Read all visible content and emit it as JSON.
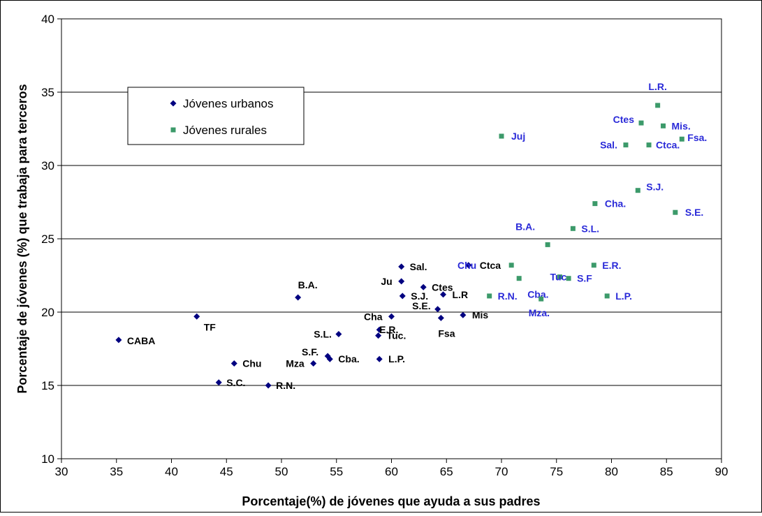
{
  "chart_data": {
    "type": "scatter",
    "title": "",
    "xlabel": "Porcentaje(%) de jóvenes que ayuda a sus padres",
    "ylabel": "Porcentaje de jóvenes (%) que trabaja para terceros",
    "xlim": [
      30,
      90
    ],
    "ylim": [
      10,
      40
    ],
    "x_ticks": [
      "30",
      "35",
      "40",
      "45",
      "50",
      "55",
      "60",
      "65",
      "70",
      "75",
      "80",
      "85",
      "90"
    ],
    "y_ticks": [
      "10",
      "15",
      "20",
      "25",
      "30",
      "35",
      "40"
    ],
    "grid": "horizontal",
    "legend_position": "top-left",
    "series": [
      {
        "name": "Jóvenes urbanos",
        "marker": "diamond",
        "color": "#000080",
        "label_color": "#000000",
        "points": [
          {
            "label": "CABA",
            "x": 35.2,
            "y": 18.1
          },
          {
            "label": "TF",
            "x": 42.3,
            "y": 19.7
          },
          {
            "label": "Chu",
            "x": 45.7,
            "y": 16.5
          },
          {
            "label": "S.C.",
            "x": 44.3,
            "y": 15.2
          },
          {
            "label": "R.N.",
            "x": 48.8,
            "y": 15.0
          },
          {
            "label": "B.A.",
            "x": 51.5,
            "y": 21.0
          },
          {
            "label": "Mza",
            "x": 52.9,
            "y": 16.5
          },
          {
            "label": "S.F.",
            "x": 54.2,
            "y": 17.0
          },
          {
            "label": "Cba.",
            "x": 54.4,
            "y": 16.8
          },
          {
            "label": "S.L.",
            "x": 55.2,
            "y": 18.5
          },
          {
            "label": "Tuc.",
            "x": 58.8,
            "y": 18.4
          },
          {
            "label": "E.R.",
            "x": 58.9,
            "y": 18.8
          },
          {
            "label": "L.P.",
            "x": 58.9,
            "y": 16.8
          },
          {
            "label": "Cha",
            "x": 60.0,
            "y": 19.7
          },
          {
            "label": "Ju",
            "x": 60.9,
            "y": 22.1
          },
          {
            "label": "Sal.",
            "x": 60.9,
            "y": 23.1
          },
          {
            "label": "S.J.",
            "x": 61.0,
            "y": 21.1
          },
          {
            "label": "Ctes",
            "x": 62.9,
            "y": 21.7
          },
          {
            "label": "S.E.",
            "x": 64.2,
            "y": 20.2
          },
          {
            "label": "Fsa",
            "x": 64.5,
            "y": 19.6
          },
          {
            "label": "L.R",
            "x": 64.7,
            "y": 21.2
          },
          {
            "label": "Mis",
            "x": 66.5,
            "y": 19.8
          },
          {
            "label": "Ctca",
            "x": 67.0,
            "y": 23.2
          }
        ]
      },
      {
        "name": "Jóvenes rurales",
        "marker": "square",
        "color": "#3C9A6A",
        "label_color": "#2A2AD8",
        "points": [
          {
            "label": "R.N.",
            "x": 68.9,
            "y": 21.1
          },
          {
            "label": "Juj",
            "x": 70.0,
            "y": 32.0
          },
          {
            "label": "Chu",
            "x": 70.9,
            "y": 23.2
          },
          {
            "label": "Cba.",
            "x": 71.6,
            "y": 22.3
          },
          {
            "label": "Mza.",
            "x": 73.6,
            "y": 20.9
          },
          {
            "label": "B.A.",
            "x": 74.2,
            "y": 24.6
          },
          {
            "label": "Tuc.",
            "x": 75.3,
            "y": 22.4
          },
          {
            "label": "S.F",
            "x": 76.1,
            "y": 22.3
          },
          {
            "label": "S.L.",
            "x": 76.5,
            "y": 25.7
          },
          {
            "label": "E.R.",
            "x": 78.4,
            "y": 23.2
          },
          {
            "label": "Cha.",
            "x": 78.5,
            "y": 27.4
          },
          {
            "label": "L.P.",
            "x": 79.6,
            "y": 21.1
          },
          {
            "label": "Sal.",
            "x": 81.3,
            "y": 31.4
          },
          {
            "label": "S.J.",
            "x": 82.4,
            "y": 28.3
          },
          {
            "label": "Ctes",
            "x": 82.7,
            "y": 32.9
          },
          {
            "label": "Ctca.",
            "x": 83.4,
            "y": 31.4
          },
          {
            "label": "L.R.",
            "x": 84.2,
            "y": 34.1
          },
          {
            "label": "Mis.",
            "x": 84.7,
            "y": 32.7
          },
          {
            "label": "S.E.",
            "x": 85.8,
            "y": 26.8
          },
          {
            "label": "Fsa.",
            "x": 86.4,
            "y": 31.8
          }
        ]
      }
    ]
  }
}
